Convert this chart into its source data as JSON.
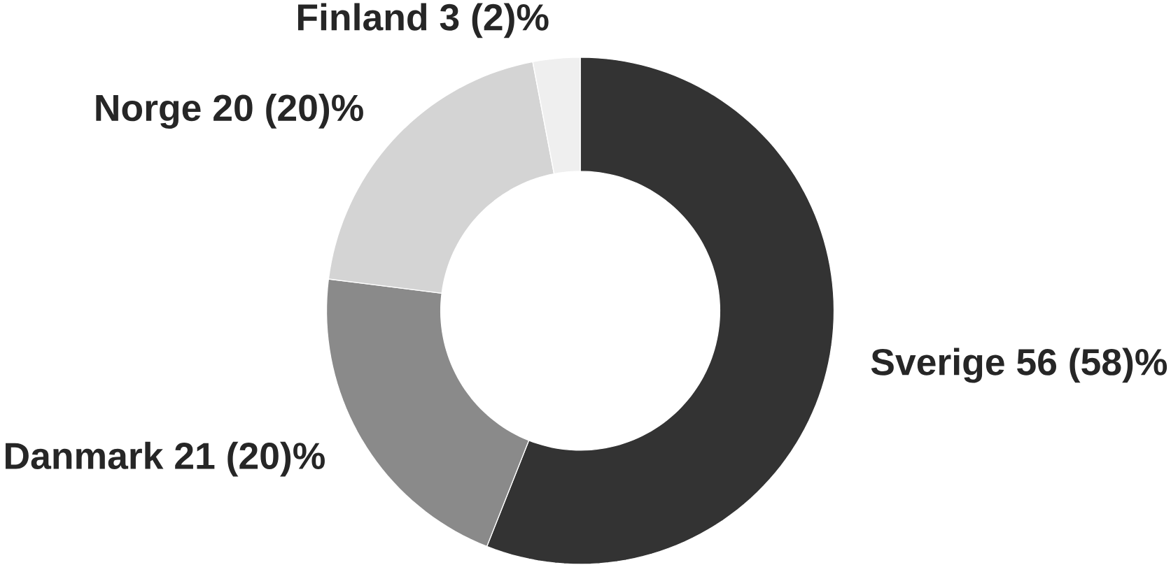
{
  "chart_data": {
    "type": "donut",
    "categories": [
      "Sverige",
      "Danmark",
      "Norge",
      "Finland"
    ],
    "values": [
      56,
      21,
      20,
      3
    ],
    "value_labels": [
      "56 (58)%",
      "21 (20)%",
      "20 (20)%",
      "3 (2)%"
    ],
    "colors": [
      "#333333",
      "#8a8a8a",
      "#d4d4d4",
      "#efefef"
    ]
  }
}
